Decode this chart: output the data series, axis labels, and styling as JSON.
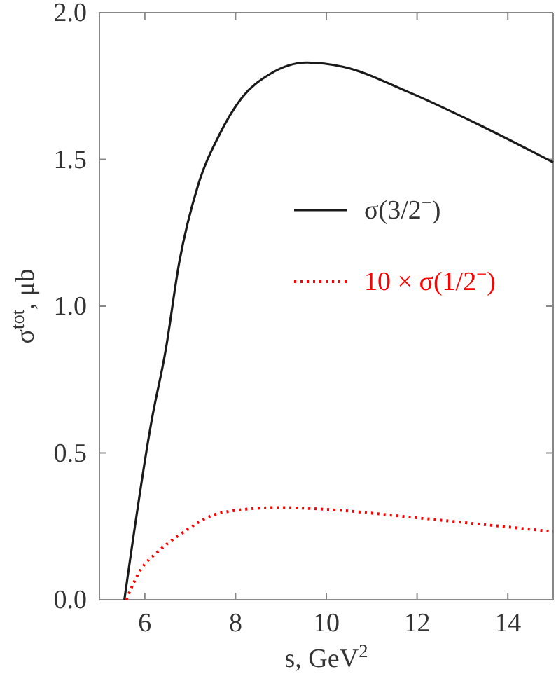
{
  "chart_data": {
    "type": "line",
    "xlabel": "s, GeV$^{2}$",
    "ylabel": "σ$^{tot}$, μb",
    "xlim": [
      5,
      15
    ],
    "ylim": [
      0,
      2
    ],
    "xticks": [
      6,
      8,
      10,
      12,
      14
    ],
    "yticks": [
      {
        "value": 0,
        "label": "0.0"
      },
      {
        "value": 0.5,
        "label": "0.5"
      },
      {
        "value": 1,
        "label": "1.0"
      },
      {
        "value": 1.5,
        "label": "1.5"
      },
      {
        "value": 2,
        "label": "2.0"
      }
    ],
    "legend": "right",
    "grid": false,
    "series": [
      {
        "name": "σ(3/2$^{−}$)",
        "color": "#1a1a1a",
        "line_style": "solid",
        "x": [
          5.55,
          6.15,
          6.46,
          6.76,
          7.17,
          7.63,
          8.14,
          8.75,
          9.57,
          10.38,
          11.8,
          13.34,
          15
        ],
        "values": [
          0,
          0.61,
          0.85,
          1.15,
          1.41,
          1.58,
          1.71,
          1.79,
          1.83,
          1.815,
          1.73,
          1.62,
          1.49
        ]
      },
      {
        "name": "10 × σ(1/2$^{−}$)",
        "color": "#ff0000",
        "line_style": "dotted",
        "x": [
          5.59,
          5.9,
          6.3,
          6.91,
          7.43,
          7.94,
          8.95,
          9.97,
          12,
          13.54,
          15
        ],
        "values": [
          0,
          0.1,
          0.165,
          0.236,
          0.284,
          0.303,
          0.314,
          0.308,
          0.279,
          0.255,
          0.232
        ]
      }
    ]
  }
}
